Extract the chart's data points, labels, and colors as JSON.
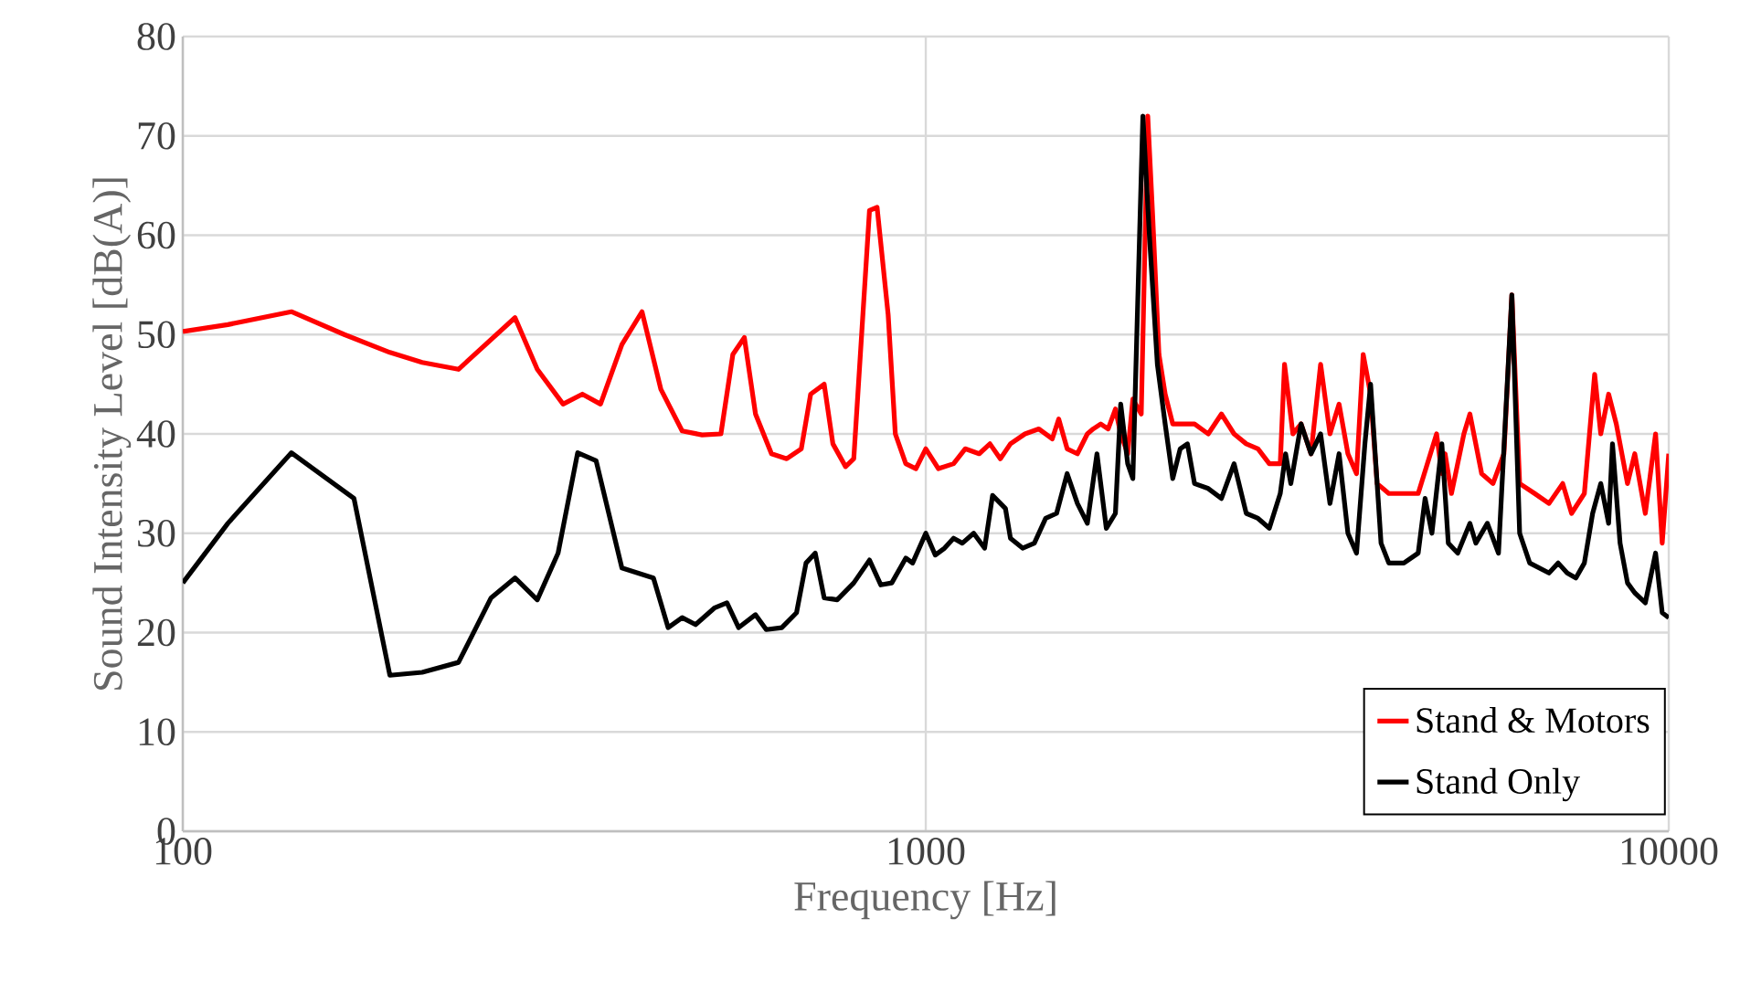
{
  "chart_data": {
    "type": "line",
    "xlabel": "Frequency [Hz]",
    "ylabel": "Sound Intensity Level [dB(A)]",
    "log": "x",
    "xlim": [
      100,
      10000
    ],
    "xticks": [
      100,
      1000,
      10000
    ],
    "ylim": [
      0,
      80
    ],
    "yticks": [
      0,
      10,
      20,
      30,
      40,
      50,
      60,
      70,
      80
    ],
    "grid": true,
    "legend": "bottom right",
    "marker": "none",
    "line_style": "solid",
    "series": [
      {
        "name": "Stand & Motors",
        "color": "#ff0000",
        "x": [
          100,
          115,
          140,
          165,
          190,
          210,
          235,
          280,
          300,
          325,
          345,
          365,
          390,
          415,
          440,
          470,
          500,
          530,
          550,
          570,
          590,
          620,
          650,
          680,
          700,
          730,
          750,
          780,
          800,
          840,
          860,
          890,
          910,
          940,
          970,
          1000,
          1040,
          1090,
          1130,
          1180,
          1220,
          1260,
          1300,
          1360,
          1420,
          1480,
          1510,
          1550,
          1600,
          1650,
          1680,
          1720,
          1760,
          1800,
          1830,
          1870,
          1900,
          1950,
          1990,
          2020,
          2060,
          2100,
          2150,
          2200,
          2300,
          2400,
          2500,
          2600,
          2700,
          2800,
          2900,
          3000,
          3040,
          3120,
          3200,
          3300,
          3400,
          3500,
          3600,
          3700,
          3800,
          3880,
          3970,
          4050,
          4200,
          4400,
          4600,
          4870,
          4950,
          5000,
          5100,
          5300,
          5400,
          5600,
          5800,
          6000,
          6150,
          6300,
          6600,
          6900,
          7200,
          7400,
          7700,
          7950,
          8100,
          8300,
          8500,
          8800,
          9000,
          9300,
          9600,
          9800,
          10000
        ],
        "values": [
          50.3,
          51,
          52.3,
          50,
          48.2,
          47.2,
          46.5,
          51.7,
          46.5,
          43,
          44,
          43,
          49,
          52.3,
          44.5,
          40.3,
          39.9,
          40,
          48,
          49.7,
          42,
          38,
          37.5,
          38.5,
          44,
          45,
          39,
          36.7,
          37.5,
          62.5,
          62.8,
          52,
          40,
          37,
          36.5,
          38.5,
          36.5,
          37,
          38.5,
          38,
          39,
          37.5,
          39,
          40,
          40.5,
          39.5,
          41.5,
          38.5,
          38,
          40,
          40.5,
          41,
          40.5,
          42.5,
          40,
          38,
          43.5,
          42,
          72,
          62,
          48,
          44,
          41,
          41,
          41,
          40,
          42,
          40,
          39,
          38.5,
          37,
          37,
          47,
          40,
          41,
          38,
          47,
          40,
          43,
          38,
          36,
          48,
          44,
          35,
          34,
          34,
          34,
          40,
          36,
          38,
          34,
          40,
          42,
          36,
          35,
          38,
          54,
          35,
          34,
          33,
          35,
          32,
          34,
          46,
          40,
          44,
          41,
          35,
          38,
          32,
          40,
          29,
          38
        ]
      },
      {
        "name": "Stand Only",
        "color": "#000000",
        "x": [
          100,
          115,
          140,
          170,
          190,
          210,
          235,
          260,
          280,
          300,
          320,
          340,
          360,
          390,
          430,
          450,
          470,
          490,
          520,
          540,
          560,
          590,
          610,
          640,
          670,
          690,
          710,
          730,
          760,
          800,
          840,
          870,
          900,
          940,
          960,
          1000,
          1030,
          1060,
          1090,
          1120,
          1160,
          1200,
          1230,
          1280,
          1300,
          1350,
          1400,
          1450,
          1500,
          1550,
          1600,
          1650,
          1700,
          1750,
          1800,
          1830,
          1870,
          1900,
          1960,
          2000,
          2050,
          2100,
          2150,
          2200,
          2250,
          2300,
          2400,
          2500,
          2600,
          2700,
          2800,
          2900,
          3000,
          3050,
          3100,
          3200,
          3300,
          3400,
          3500,
          3600,
          3700,
          3800,
          3900,
          3970,
          4100,
          4200,
          4400,
          4600,
          4700,
          4800,
          4950,
          5050,
          5200,
          5400,
          5500,
          5700,
          5900,
          6150,
          6300,
          6500,
          6900,
          7100,
          7300,
          7500,
          7700,
          7900,
          8100,
          8300,
          8400,
          8600,
          8800,
          9000,
          9300,
          9600,
          9800,
          10000
        ],
        "values": [
          25,
          31,
          38.1,
          33.5,
          15.7,
          16,
          17,
          23.5,
          25.5,
          23.3,
          28,
          38.1,
          37.3,
          26.5,
          25.5,
          20.5,
          21.5,
          20.8,
          22.5,
          23,
          20.5,
          21.8,
          20.3,
          20.5,
          22,
          27,
          28,
          23.5,
          23.3,
          25,
          27.3,
          24.8,
          25,
          27.5,
          27,
          30,
          27.8,
          28.5,
          29.5,
          29,
          30,
          28.5,
          33.8,
          32.5,
          29.5,
          28.5,
          29,
          31.5,
          32,
          36,
          33,
          31,
          38,
          30.5,
          32,
          43,
          37,
          35.5,
          72,
          60,
          47,
          41,
          35.5,
          38.5,
          39,
          35,
          34.5,
          33.5,
          37,
          32,
          31.5,
          30.5,
          34,
          38,
          35,
          41,
          38,
          40,
          33,
          38,
          30,
          28,
          39,
          45,
          29,
          27,
          27,
          28,
          33.5,
          30,
          39,
          29,
          28,
          31,
          29,
          31,
          28,
          54,
          30,
          27,
          26,
          27,
          26,
          25.5,
          27,
          32,
          35,
          31,
          39,
          29,
          25,
          24,
          23,
          28,
          22,
          21.5
        ]
      }
    ]
  }
}
